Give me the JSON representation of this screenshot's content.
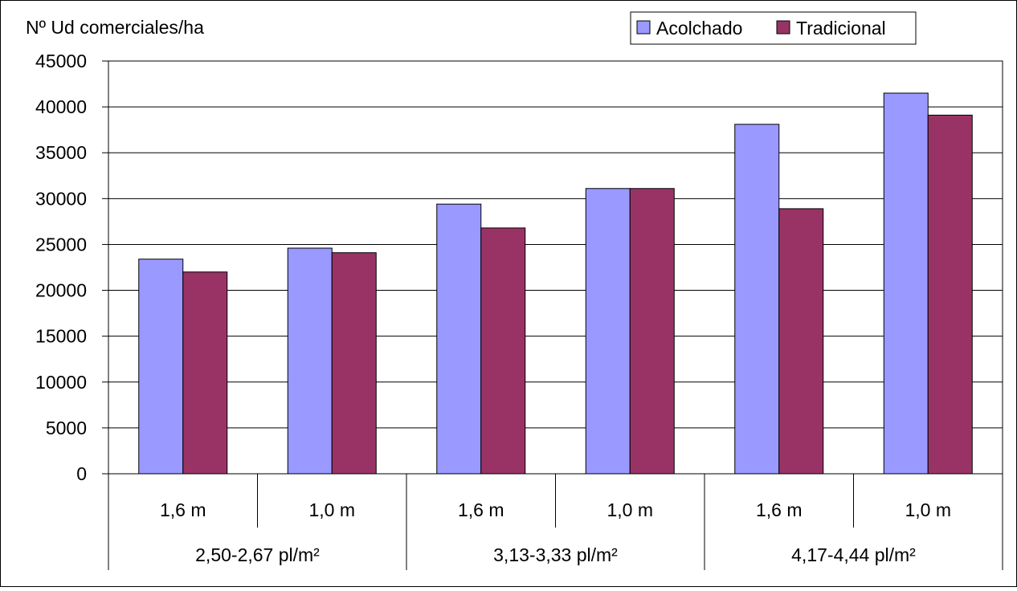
{
  "chart_data": {
    "type": "bar",
    "ylabel": "Nº Ud comerciales/ha",
    "ylim": [
      0,
      45000
    ],
    "yticks": [
      0,
      5000,
      10000,
      15000,
      20000,
      25000,
      30000,
      35000,
      40000,
      45000
    ],
    "grid": true,
    "legend_position": "top-right",
    "categories": [
      "1,6 m",
      "1,0 m",
      "1,6 m",
      "1,0 m",
      "1,6 m",
      "1,0 m"
    ],
    "groups": [
      {
        "label": "2,50-2,67 pl/m²",
        "span": 2
      },
      {
        "label": "3,13-3,33 pl/m²",
        "span": 2
      },
      {
        "label": "4,17-4,44 pl/m²",
        "span": 2
      }
    ],
    "series": [
      {
        "name": "Acolchado",
        "color": "#9999ff",
        "values": [
          23400,
          24600,
          29400,
          31100,
          38100,
          41500
        ]
      },
      {
        "name": "Tradicional",
        "color": "#993366",
        "values": [
          22000,
          24100,
          26800,
          31100,
          28900,
          39100
        ]
      }
    ]
  }
}
